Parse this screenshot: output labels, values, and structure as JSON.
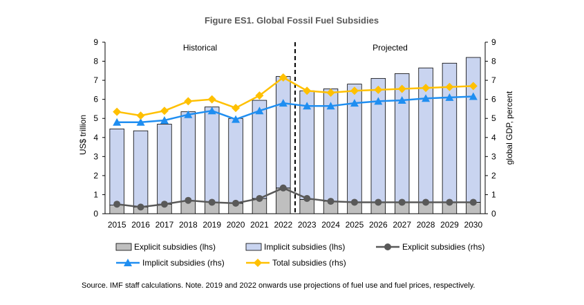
{
  "chart_data": {
    "type": "bar",
    "title": "Figure ES1. Global Fossil Fuel Subsidies",
    "ylabel_left": "US$ trillion",
    "ylabel_right": "global GDP, percent",
    "ylim_left": [
      0,
      9
    ],
    "ylim_right": [
      0,
      9
    ],
    "yticks_left": [
      "0",
      "1",
      "2",
      "3",
      "4",
      "5",
      "6",
      "7",
      "8",
      "9"
    ],
    "yticks_right": [
      "0",
      "1",
      "2",
      "3",
      "4",
      "5",
      "6",
      "7",
      "8",
      "9"
    ],
    "categories": [
      "2015",
      "2016",
      "2017",
      "2018",
      "2019",
      "2020",
      "2021",
      "2022",
      "2023",
      "2024",
      "2025",
      "2026",
      "2027",
      "2028",
      "2029",
      "2030"
    ],
    "regions": {
      "historical": "Historical",
      "projected": "Projected"
    },
    "divider_after": "2022",
    "series": [
      {
        "name": "Explicit subsidies (lhs)",
        "kind": "bar",
        "axis": "lhs",
        "color": "#bfbfbf",
        "values": [
          0.45,
          0.35,
          0.5,
          0.65,
          0.6,
          0.55,
          0.8,
          1.35,
          0.75,
          0.65,
          0.6,
          0.6,
          0.6,
          0.6,
          0.6,
          0.6
        ]
      },
      {
        "name": "Implicit subsidies (lhs)",
        "kind": "bar",
        "axis": "lhs",
        "color": "#c9d4f0",
        "values": [
          4.0,
          4.0,
          4.2,
          4.7,
          5.0,
          4.45,
          5.15,
          5.85,
          5.7,
          5.9,
          6.2,
          6.5,
          6.75,
          7.05,
          7.3,
          7.6
        ]
      },
      {
        "name": "Explicit subsidies (rhs)",
        "kind": "line",
        "axis": "rhs",
        "color": "#595959",
        "marker": "circle",
        "values": [
          0.5,
          0.35,
          0.5,
          0.7,
          0.6,
          0.55,
          0.8,
          1.35,
          0.8,
          0.65,
          0.6,
          0.6,
          0.6,
          0.6,
          0.6,
          0.6
        ]
      },
      {
        "name": "Implicit subsidies (rhs)",
        "kind": "line",
        "axis": "rhs",
        "color": "#1f8ef1",
        "marker": "triangle",
        "values": [
          4.8,
          4.8,
          4.9,
          5.2,
          5.4,
          4.95,
          5.4,
          5.8,
          5.65,
          5.65,
          5.8,
          5.9,
          5.95,
          6.05,
          6.1,
          6.15
        ]
      },
      {
        "name": "Total subsidies (rhs)",
        "kind": "line",
        "axis": "rhs",
        "color": "#ffc000",
        "marker": "diamond",
        "values": [
          5.35,
          5.15,
          5.4,
          5.9,
          6.0,
          5.55,
          6.2,
          7.15,
          6.45,
          6.35,
          6.45,
          6.5,
          6.55,
          6.6,
          6.65,
          6.7
        ]
      }
    ],
    "grid": false,
    "legend_position": "bottom"
  },
  "source_note": "Source. IMF staff calculations. Note. 2019 and 2022 onwards use projections of fuel use and fuel prices, respectively."
}
